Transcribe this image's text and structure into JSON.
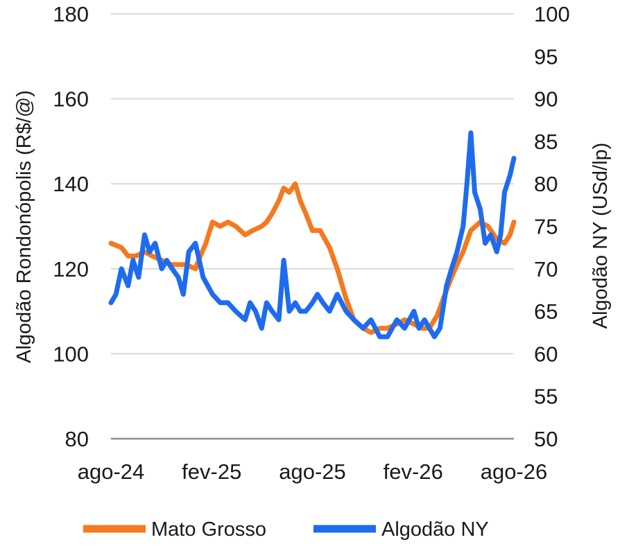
{
  "chart_data": {
    "type": "line",
    "ylabel_left": "Algodão Rondonópolis (R$/@)",
    "ylabel_right": "Algodão NY (USd/lp)",
    "xlim": [
      "2024-08-01",
      "2026-08-01"
    ],
    "x_ticks": [
      "ago-24",
      "fev-25",
      "ago-25",
      "fev-26",
      "ago-26"
    ],
    "y_left": {
      "range": [
        80,
        180
      ],
      "ticks": [
        "80",
        "100",
        "120",
        "140",
        "160",
        "180"
      ]
    },
    "y_right": {
      "range": [
        50,
        100
      ],
      "ticks": [
        "50",
        "55",
        "60",
        "65",
        "70",
        "75",
        "80",
        "85",
        "90",
        "95",
        "100"
      ]
    },
    "grid": true,
    "legend_position": "bottom",
    "series": [
      {
        "name": "Mato Grosso",
        "axis": "left",
        "color": "#F5791F",
        "x": [
          "2024-08-01",
          "2024-08-20",
          "2024-09-01",
          "2024-09-15",
          "2024-10-01",
          "2024-10-15",
          "2024-11-01",
          "2024-11-15",
          "2024-12-01",
          "2024-12-15",
          "2025-01-01",
          "2025-01-10",
          "2025-01-20",
          "2025-02-01",
          "2025-02-15",
          "2025-03-01",
          "2025-03-15",
          "2025-04-01",
          "2025-04-15",
          "2025-05-01",
          "2025-05-10",
          "2025-05-20",
          "2025-06-01",
          "2025-06-10",
          "2025-06-20",
          "2025-07-01",
          "2025-07-10",
          "2025-07-20",
          "2025-08-01",
          "2025-08-15",
          "2025-09-01",
          "2025-09-15",
          "2025-10-01",
          "2025-10-15",
          "2025-11-01",
          "2025-11-15",
          "2025-12-01",
          "2025-12-15",
          "2026-01-01",
          "2026-01-15",
          "2026-02-01",
          "2026-02-15",
          "2026-03-01",
          "2026-03-15",
          "2026-04-01",
          "2026-04-10",
          "2026-04-20",
          "2026-05-01",
          "2026-05-15",
          "2026-06-01",
          "2026-06-15",
          "2026-07-01",
          "2026-07-15",
          "2026-07-25",
          "2026-08-01"
        ],
        "values": [
          126,
          125,
          123,
          123,
          124,
          123,
          122,
          121,
          121,
          121,
          120,
          123,
          126,
          131,
          130,
          131,
          130,
          128,
          129,
          130,
          131,
          133,
          136,
          139,
          138,
          140,
          136,
          133,
          129,
          129,
          125,
          120,
          113,
          108,
          106,
          105,
          106,
          106,
          107,
          108,
          107,
          106,
          106,
          109,
          115,
          118,
          121,
          124,
          129,
          131,
          130,
          127,
          126,
          128,
          131
        ]
      },
      {
        "name": "Algodão NY",
        "axis": "right",
        "color": "#1E6BF0",
        "x": [
          "2024-08-01",
          "2024-08-10",
          "2024-08-20",
          "2024-09-01",
          "2024-09-10",
          "2024-09-20",
          "2024-10-01",
          "2024-10-10",
          "2024-10-20",
          "2024-11-01",
          "2024-11-10",
          "2024-11-20",
          "2024-12-01",
          "2024-12-10",
          "2024-12-20",
          "2025-01-01",
          "2025-01-15",
          "2025-02-01",
          "2025-02-15",
          "2025-03-01",
          "2025-03-15",
          "2025-04-01",
          "2025-04-10",
          "2025-04-20",
          "2025-05-01",
          "2025-05-10",
          "2025-05-20",
          "2025-06-01",
          "2025-06-10",
          "2025-06-20",
          "2025-07-01",
          "2025-07-10",
          "2025-07-20",
          "2025-08-01",
          "2025-08-10",
          "2025-08-20",
          "2025-09-01",
          "2025-09-15",
          "2025-10-01",
          "2025-10-15",
          "2025-11-01",
          "2025-11-15",
          "2025-12-01",
          "2025-12-15",
          "2026-01-01",
          "2026-01-15",
          "2026-02-01",
          "2026-02-10",
          "2026-02-20",
          "2026-03-01",
          "2026-03-10",
          "2026-03-20",
          "2026-04-01",
          "2026-04-10",
          "2026-04-20",
          "2026-05-01",
          "2026-05-08",
          "2026-05-15",
          "2026-05-22",
          "2026-06-01",
          "2026-06-10",
          "2026-06-20",
          "2026-07-01",
          "2026-07-08",
          "2026-07-15",
          "2026-07-25",
          "2026-08-01"
        ],
        "values": [
          66,
          67,
          70,
          68,
          71,
          69,
          74,
          72,
          73,
          70,
          71,
          70,
          69,
          67,
          72,
          73,
          69,
          67,
          66,
          66,
          65,
          64,
          66,
          65,
          63,
          66,
          65,
          64,
          71,
          65,
          66,
          65,
          65,
          66,
          67,
          66,
          65,
          67,
          65,
          64,
          63,
          64,
          62,
          62,
          64,
          63,
          65,
          63,
          64,
          63,
          62,
          63,
          68,
          70,
          72,
          75,
          80,
          86,
          79,
          77,
          73,
          74,
          72,
          74,
          79,
          81,
          83
        ]
      }
    ]
  }
}
